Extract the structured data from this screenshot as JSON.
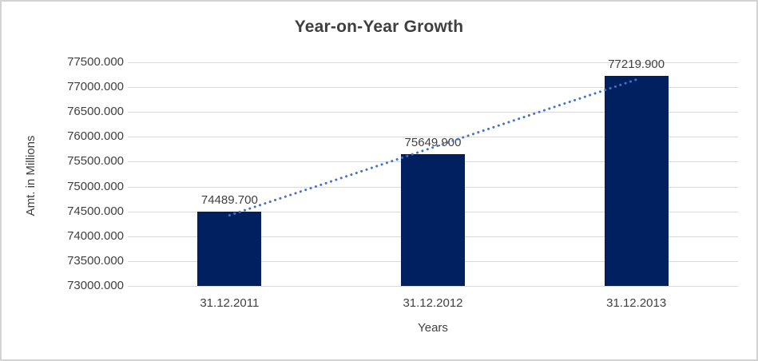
{
  "chart_data": {
    "type": "bar",
    "title": "Year-on-Year Growth",
    "xlabel": "Years",
    "ylabel": "Amt. in Millions",
    "categories": [
      "31.12.2011",
      "31.12.2012",
      "31.12.2013"
    ],
    "values": [
      74489.7,
      75649.9,
      77219.9
    ],
    "data_labels": [
      "74489.700",
      "75649.900",
      "77219.900"
    ],
    "ylim": [
      73000,
      77500
    ],
    "ytick_step": 500,
    "ytick_labels": [
      "77500.000",
      "77000.000",
      "76500.000",
      "76000.000",
      "75500.000",
      "75000.000",
      "74500.000",
      "74000.000",
      "73500.000",
      "73000.000"
    ],
    "grid": true,
    "legend": "none",
    "trendline": {
      "kind": "linear",
      "style": "dotted",
      "color": "#4472C4"
    },
    "colors": {
      "bar": "#002060",
      "gridline": "#d9d9d9",
      "text": "#404040",
      "frame_border": "#d3d3d3"
    }
  }
}
